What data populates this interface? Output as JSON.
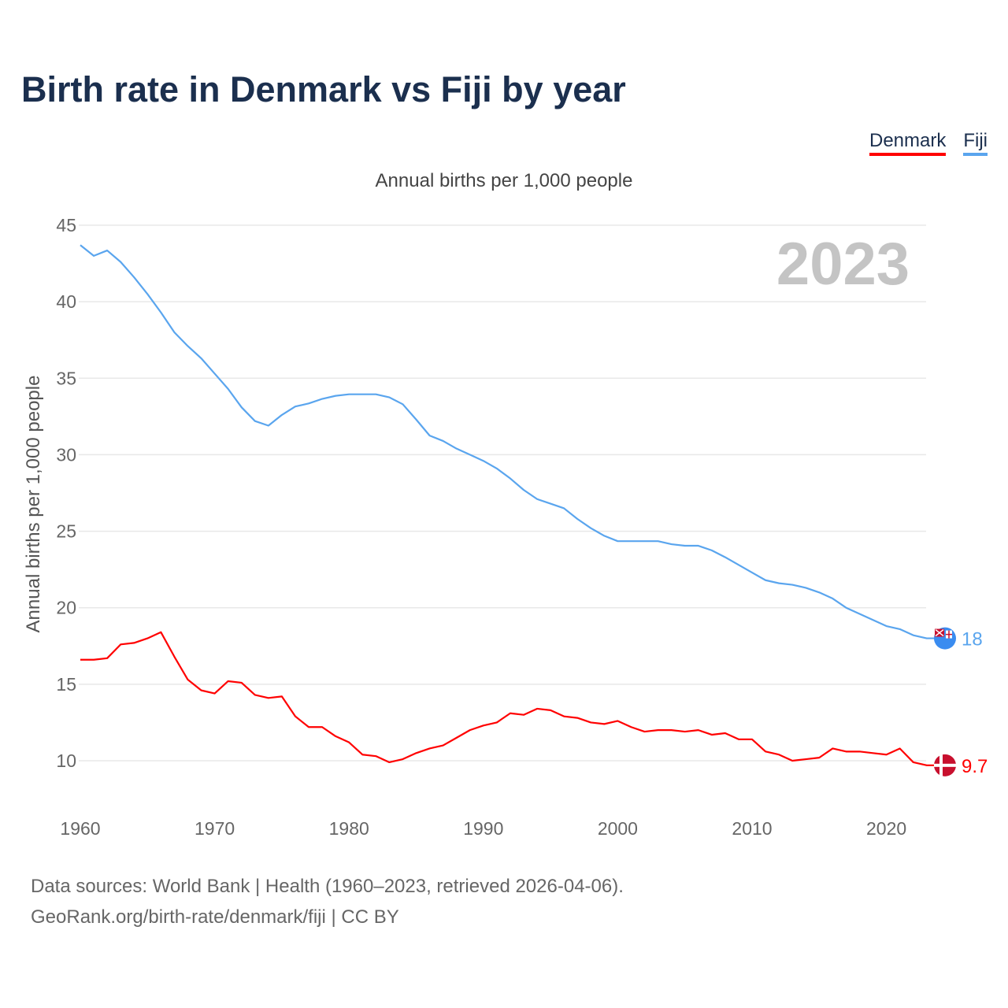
{
  "title": "Birth rate in Denmark vs Fiji by year",
  "legend": [
    "Denmark",
    "Fiji"
  ],
  "subtitle": "Annual births per 1,000 people",
  "footer": {
    "line1": "Data sources: World Bank | Health (1960–2023, retrieved 2026-04-06).",
    "line2": "GeoRank.org/birth-rate/denmark/fiji | CC BY"
  },
  "chart_data": {
    "type": "line",
    "title": "Birth rate in Denmark vs Fiji by year",
    "ylabel": "Annual births per 1,000 people",
    "xlabel": "",
    "year_label": "2023",
    "xlim": [
      1960,
      2023
    ],
    "ylim": [
      8,
      45
    ],
    "xticks": [
      "1960",
      "1970",
      "1980",
      "1990",
      "2000",
      "2010",
      "2020"
    ],
    "yticks": [
      "10",
      "15",
      "20",
      "25",
      "30",
      "35",
      "40",
      "45"
    ],
    "grid": true,
    "legend_position": "top-right",
    "x_start": 1960,
    "series": [
      {
        "name": "Denmark",
        "color": "#ff0000",
        "end_label": "9.7",
        "values": [
          16.6,
          16.6,
          16.7,
          17.6,
          17.7,
          18.0,
          18.4,
          16.8,
          15.3,
          14.6,
          14.4,
          15.2,
          15.1,
          14.3,
          14.1,
          14.2,
          12.9,
          12.2,
          12.2,
          11.6,
          11.2,
          10.4,
          10.3,
          9.9,
          10.1,
          10.5,
          10.8,
          11.0,
          11.5,
          12.0,
          12.3,
          12.5,
          13.1,
          13.0,
          13.4,
          13.3,
          12.9,
          12.8,
          12.5,
          12.4,
          12.6,
          12.2,
          11.9,
          12.0,
          12.0,
          11.9,
          12.0,
          11.7,
          11.8,
          11.4,
          11.4,
          10.6,
          10.4,
          10.0,
          10.1,
          10.2,
          10.8,
          10.6,
          10.6,
          10.5,
          10.4,
          10.8,
          9.9,
          9.7
        ]
      },
      {
        "name": "Fiji",
        "color": "#5aa5ee",
        "end_label": "18",
        "values": [
          43.7,
          43.0,
          43.35,
          42.6,
          41.6,
          40.5,
          39.3,
          38.0,
          37.1,
          36.3,
          35.3,
          34.3,
          33.1,
          32.2,
          31.9,
          32.6,
          33.15,
          33.35,
          33.65,
          33.85,
          33.95,
          33.95,
          33.95,
          33.75,
          33.3,
          32.3,
          31.25,
          30.9,
          30.4,
          30.0,
          29.6,
          29.1,
          28.45,
          27.7,
          27.1,
          26.8,
          26.5,
          25.8,
          25.2,
          24.7,
          24.35,
          24.35,
          24.35,
          24.35,
          24.15,
          24.05,
          24.05,
          23.75,
          23.3,
          22.8,
          22.3,
          21.8,
          21.6,
          21.5,
          21.3,
          21.0,
          20.6,
          20.0,
          19.6,
          19.2,
          18.8,
          18.6,
          18.2,
          18.0
        ]
      }
    ]
  }
}
